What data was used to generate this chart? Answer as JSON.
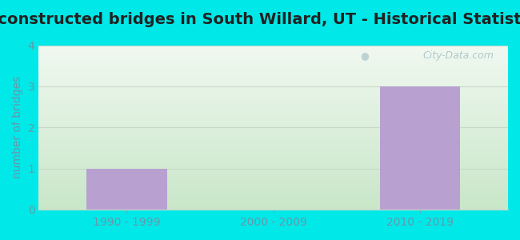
{
  "title": "Reconstructed bridges in South Willard, UT - Historical Statistics",
  "categories": [
    "1990 - 1999",
    "2000 - 2009",
    "2010 - 2019"
  ],
  "values": [
    1,
    0,
    3
  ],
  "bar_color": "#b8a0d0",
  "ylabel": "number of bridges",
  "ylim": [
    0,
    4
  ],
  "yticks": [
    0,
    1,
    2,
    3,
    4
  ],
  "background_outer": "#00e8e8",
  "background_top": "#f0f8f0",
  "background_bottom": "#d8efd8",
  "grid_color": "#c8d8c8",
  "title_fontsize": 14,
  "axis_fontsize": 10,
  "tick_fontsize": 10,
  "tick_color": "#6699aa",
  "watermark_text": "City-Data.com",
  "watermark_color": "#a8c4c8",
  "bar_width": 0.55,
  "title_color": "#222222"
}
